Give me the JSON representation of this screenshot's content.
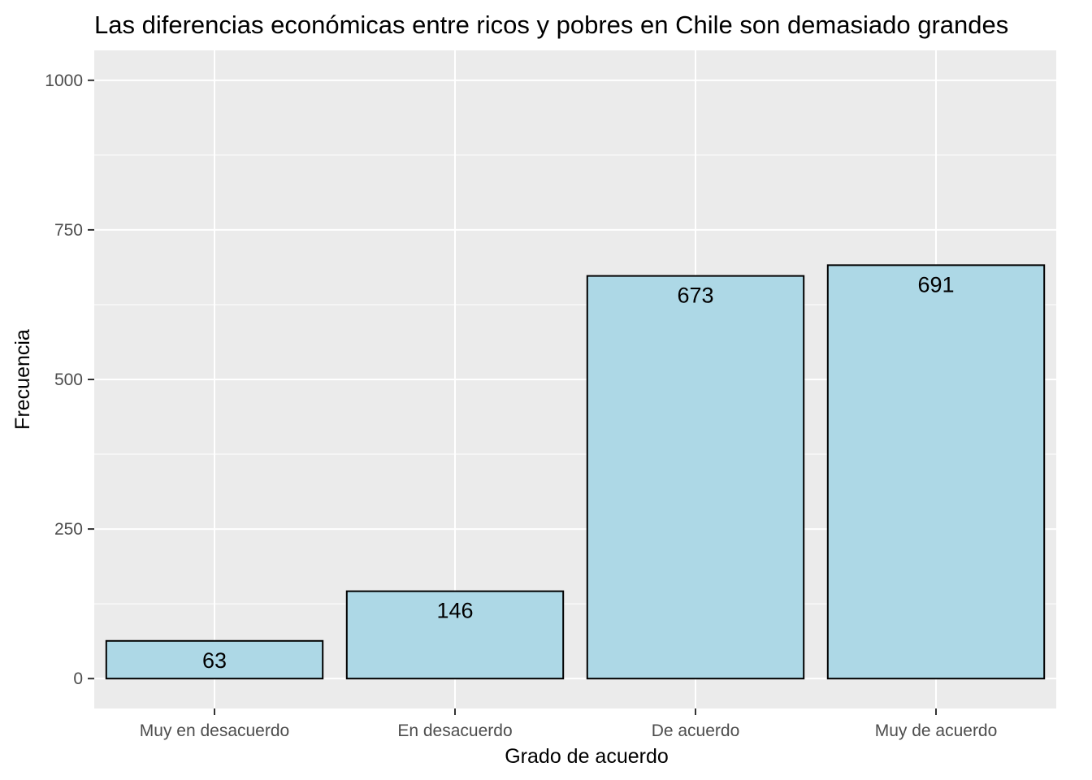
{
  "chart_data": {
    "type": "bar",
    "title": "Las diferencias económicas entre ricos y pobres en Chile son demasiado grandes",
    "xlabel": "Grado de acuerdo",
    "ylabel": "Frecuencia",
    "categories": [
      "Muy en desacuerdo",
      "En desacuerdo",
      "De acuerdo",
      "Muy de acuerdo"
    ],
    "values": [
      63,
      146,
      673,
      691
    ],
    "data_labels": [
      "63",
      "146",
      "673",
      "691"
    ],
    "ylim": [
      -50,
      1050
    ],
    "yticks": [
      0,
      250,
      500,
      750,
      1000
    ],
    "ytick_labels": [
      "0",
      "250",
      "500",
      "750",
      "1000"
    ],
    "grid": true,
    "legend": "none",
    "colors": {
      "bar_fill": "#add8e6",
      "bar_stroke": "#000000",
      "panel_background": "#ebebeb",
      "grid_line": "#ffffff",
      "tick_text": "#4d4d4d"
    }
  }
}
